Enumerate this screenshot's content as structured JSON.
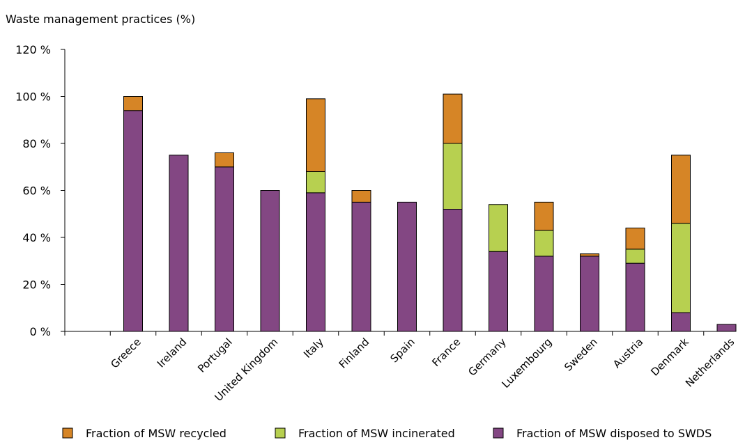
{
  "chart_data": {
    "type": "bar",
    "stacked": true,
    "ylabel": "Waste management practices (%)",
    "ylim": [
      0,
      120
    ],
    "yticks": [
      0,
      20,
      40,
      60,
      80,
      100,
      120
    ],
    "ytick_labels": [
      "0 %",
      "20 %",
      "40 %",
      "60 %",
      "80 %",
      "100 %",
      "120 %"
    ],
    "categories": [
      "Greece",
      "Ireland",
      "Portugal",
      "United Kingdom",
      "Italy",
      "Finland",
      "Spain",
      "France",
      "Germany",
      "Luxembourg",
      "Sweden",
      "Austria",
      "Denmark",
      "Netherlands"
    ],
    "series": [
      {
        "name": "Fraction of MSW disposed to SWDS",
        "color": "#834783",
        "values": [
          94,
          75,
          70,
          60,
          59,
          55,
          55,
          52,
          34,
          32,
          32,
          29,
          8,
          3
        ]
      },
      {
        "name": "Fraction of MSW incinerated",
        "color": "#b7d050",
        "values": [
          0,
          0,
          0,
          0,
          9,
          0,
          0,
          28,
          20,
          11,
          0,
          6,
          38,
          0
        ]
      },
      {
        "name": "Fraction of MSW recycled",
        "color": "#d68526",
        "values": [
          6,
          0,
          6,
          0,
          31,
          5,
          0,
          21,
          0,
          12,
          1,
          9,
          29,
          0
        ]
      }
    ],
    "legend_order": [
      "Fraction of MSW recycled",
      "Fraction of MSW incinerated",
      "Fraction of MSW disposed to SWDS"
    ],
    "legend_position": "bottom",
    "grid": false
  }
}
